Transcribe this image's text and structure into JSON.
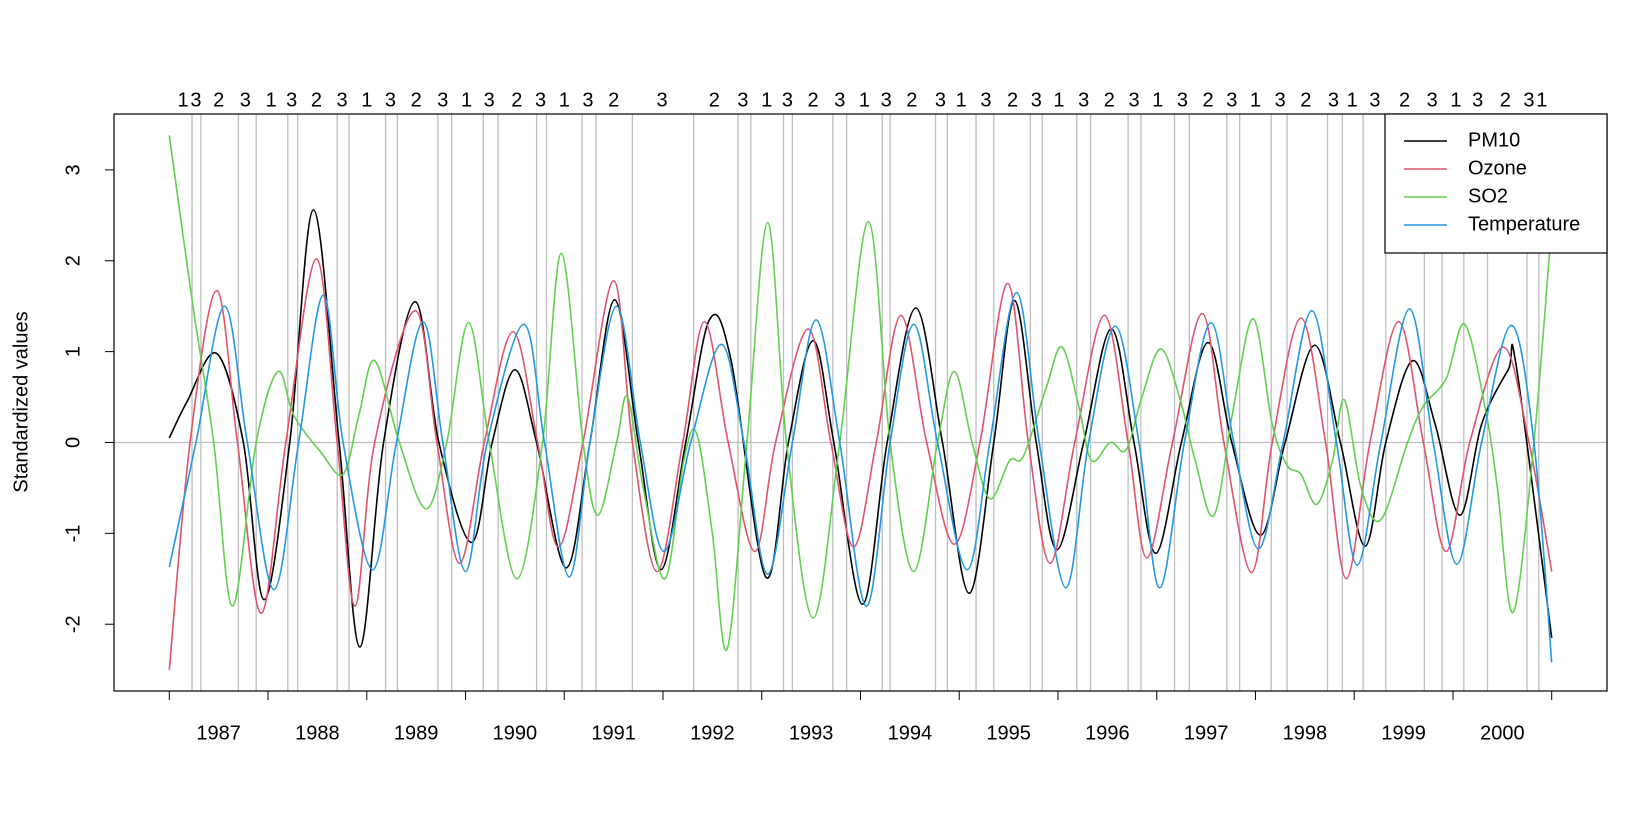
{
  "chart_data": {
    "type": "line",
    "y_label": "Standardized values",
    "xlim": [
      1986.44,
      2001.56
    ],
    "ylim": [
      -2.735,
      3.615
    ],
    "xticks": [
      1987,
      1988,
      1989,
      1990,
      1991,
      1992,
      1993,
      1994,
      1995,
      1996,
      1997,
      1998,
      1999,
      2000,
      2001
    ],
    "year_labels": [
      "1987",
      "1988",
      "1989",
      "1990",
      "1991",
      "1992",
      "1993",
      "1994",
      "1995",
      "1996",
      "1997",
      "1998",
      "1999",
      "2000"
    ],
    "yticks": [
      -2,
      -1,
      0,
      1,
      2,
      3
    ],
    "hline": 0,
    "vlines": [
      1987.23,
      1987.32,
      1987.7,
      1987.88,
      1988.2,
      1988.3,
      1988.7,
      1988.82,
      1989.19,
      1989.31,
      1989.72,
      1989.86,
      1990.18,
      1990.33,
      1990.72,
      1990.82,
      1991.18,
      1991.32,
      1991.69,
      1992.31,
      1992.76,
      1992.89,
      1993.22,
      1993.31,
      1993.72,
      1993.86,
      1994.22,
      1994.3,
      1994.76,
      1994.88,
      1995.17,
      1995.35,
      1995.72,
      1995.84,
      1996.19,
      1996.33,
      1996.71,
      1996.84,
      1997.18,
      1997.33,
      1997.71,
      1997.84,
      1998.16,
      1998.32,
      1998.73,
      1998.88,
      1999.09,
      1999.32,
      1999.71,
      1999.89,
      2000.11,
      2000.35,
      2000.75,
      2000.87
    ],
    "top_labels": [
      {
        "value": 1987.14,
        "label": "1"
      },
      {
        "value": 1987.27,
        "label": "3"
      },
      {
        "value": 1987.5,
        "label": "2"
      },
      {
        "value": 1987.77,
        "label": "3"
      },
      {
        "value": 1988.03,
        "label": "1"
      },
      {
        "value": 1988.24,
        "label": "3"
      },
      {
        "value": 1988.49,
        "label": "2"
      },
      {
        "value": 1988.75,
        "label": "3"
      },
      {
        "value": 1989.0,
        "label": "1"
      },
      {
        "value": 1989.24,
        "label": "3"
      },
      {
        "value": 1989.5,
        "label": "2"
      },
      {
        "value": 1989.77,
        "label": "3"
      },
      {
        "value": 1990.01,
        "label": "1"
      },
      {
        "value": 1990.24,
        "label": "3"
      },
      {
        "value": 1990.52,
        "label": "2"
      },
      {
        "value": 1990.76,
        "label": "3"
      },
      {
        "value": 1991.0,
        "label": "1"
      },
      {
        "value": 1991.24,
        "label": "3"
      },
      {
        "value": 1991.5,
        "label": "2"
      },
      {
        "value": 1991.99,
        "label": "3"
      },
      {
        "value": 1992.52,
        "label": "2"
      },
      {
        "value": 1992.81,
        "label": "3"
      },
      {
        "value": 1993.05,
        "label": "1"
      },
      {
        "value": 1993.26,
        "label": "3"
      },
      {
        "value": 1993.52,
        "label": "2"
      },
      {
        "value": 1993.79,
        "label": "3"
      },
      {
        "value": 1994.04,
        "label": "1"
      },
      {
        "value": 1994.26,
        "label": "3"
      },
      {
        "value": 1994.52,
        "label": "2"
      },
      {
        "value": 1994.81,
        "label": "3"
      },
      {
        "value": 1995.02,
        "label": "1"
      },
      {
        "value": 1995.27,
        "label": "3"
      },
      {
        "value": 1995.54,
        "label": "2"
      },
      {
        "value": 1995.78,
        "label": "3"
      },
      {
        "value": 1996.01,
        "label": "1"
      },
      {
        "value": 1996.26,
        "label": "3"
      },
      {
        "value": 1996.52,
        "label": "2"
      },
      {
        "value": 1996.77,
        "label": "3"
      },
      {
        "value": 1997.01,
        "label": "1"
      },
      {
        "value": 1997.26,
        "label": "3"
      },
      {
        "value": 1997.52,
        "label": "2"
      },
      {
        "value": 1997.76,
        "label": "3"
      },
      {
        "value": 1998.0,
        "label": "1"
      },
      {
        "value": 1998.25,
        "label": "3"
      },
      {
        "value": 1998.51,
        "label": "2"
      },
      {
        "value": 1998.79,
        "label": "3"
      },
      {
        "value": 1998.98,
        "label": "1"
      },
      {
        "value": 1999.21,
        "label": "3"
      },
      {
        "value": 1999.51,
        "label": "2"
      },
      {
        "value": 1999.79,
        "label": "3"
      },
      {
        "value": 2000.03,
        "label": "1"
      },
      {
        "value": 2000.25,
        "label": "3"
      },
      {
        "value": 2000.53,
        "label": "2"
      },
      {
        "value": 2000.77,
        "label": "3"
      },
      {
        "value": 2000.9,
        "label": "1"
      }
    ],
    "legend": "topright",
    "series": [
      {
        "name": "PM10",
        "color": "#000000",
        "x": [
          1987.0,
          1987.18,
          1987.48,
          1987.75,
          1987.96,
          1988.22,
          1988.46,
          1988.72,
          1988.93,
          1989.17,
          1989.49,
          1989.73,
          1990.06,
          1990.27,
          1990.5,
          1990.72,
          1991.02,
          1991.26,
          1991.51,
          1991.75,
          1991.98,
          1992.23,
          1992.47,
          1992.69,
          1993.04,
          1993.27,
          1993.52,
          1993.73,
          1994.02,
          1994.27,
          1994.56,
          1994.83,
          1995.1,
          1995.35,
          1995.56,
          1995.78,
          1995.99,
          1996.26,
          1996.54,
          1996.77,
          1996.99,
          1997.25,
          1997.52,
          1997.76,
          1998.05,
          1998.3,
          1998.6,
          1998.86,
          1999.11,
          1999.32,
          1999.59,
          1999.82,
          2000.07,
          2000.29,
          2000.56,
          2000.64,
          2001.0
        ],
        "values": [
          0.05,
          0.45,
          0.98,
          0,
          -1.73,
          0,
          2.56,
          0,
          -2.25,
          0,
          1.55,
          0,
          -1.1,
          0,
          0.8,
          0,
          -1.38,
          0,
          1.57,
          0,
          -1.4,
          0,
          1.35,
          0.9,
          -1.48,
          0,
          1.12,
          0,
          -1.78,
          0,
          1.48,
          0,
          -1.66,
          0,
          1.56,
          0,
          -1.18,
          0,
          1.25,
          0,
          -1.22,
          0,
          1.1,
          0,
          -1.02,
          0,
          1.07,
          0,
          -1.14,
          0,
          0.9,
          0.2,
          -0.8,
          0.2,
          0.8,
          0.85,
          -2.15
        ]
      },
      {
        "name": "Ozone",
        "color": "#DF536B",
        "x": [
          1987.0,
          1987.21,
          1987.48,
          1987.69,
          1987.93,
          1988.18,
          1988.49,
          1988.7,
          1988.88,
          1989.08,
          1989.49,
          1989.71,
          1989.94,
          1990.19,
          1990.48,
          1990.73,
          1990.94,
          1991.19,
          1991.5,
          1991.69,
          1991.94,
          1992.2,
          1992.42,
          1992.66,
          1992.93,
          1993.14,
          1993.47,
          1993.7,
          1993.93,
          1994.16,
          1994.41,
          1994.67,
          1994.95,
          1995.21,
          1995.49,
          1995.7,
          1995.92,
          1996.17,
          1996.47,
          1996.71,
          1996.9,
          1997.16,
          1997.46,
          1997.68,
          1997.96,
          1998.17,
          1998.46,
          1998.71,
          1998.92,
          1999.16,
          1999.45,
          1999.7,
          1999.93,
          2000.17,
          2000.51,
          2000.77,
          2001.0
        ],
        "values": [
          -2.5,
          0,
          1.67,
          0,
          -1.88,
          0,
          2.02,
          0,
          -1.8,
          0,
          1.45,
          0,
          -1.33,
          0,
          1.22,
          0,
          -1.15,
          0,
          1.78,
          0,
          -1.42,
          0,
          1.33,
          0,
          -1.2,
          0,
          1.25,
          0,
          -1.15,
          0,
          1.4,
          0,
          -1.12,
          0,
          1.75,
          0,
          -1.33,
          0,
          1.4,
          0,
          -1.27,
          0,
          1.42,
          0,
          -1.43,
          0,
          1.37,
          0,
          -1.5,
          0,
          1.33,
          0,
          -1.2,
          0,
          1.05,
          0,
          -1.42
        ]
      },
      {
        "name": "SO2",
        "color": "#61D04F",
        "x": [
          1987.0,
          1987.24,
          1987.45,
          1987.64,
          1987.88,
          1988.1,
          1988.26,
          1988.53,
          1988.76,
          1988.92,
          1989.08,
          1989.33,
          1989.6,
          1989.81,
          1990.03,
          1990.24,
          1990.52,
          1990.78,
          1990.97,
          1991.19,
          1991.34,
          1991.53,
          1991.64,
          1991.8,
          1992.02,
          1992.21,
          1992.34,
          1992.5,
          1992.65,
          1992.85,
          1993.06,
          1993.25,
          1993.52,
          1993.79,
          1994.08,
          1994.3,
          1994.54,
          1994.78,
          1994.95,
          1995.13,
          1995.31,
          1995.51,
          1995.65,
          1995.88,
          1996.04,
          1996.21,
          1996.34,
          1996.53,
          1996.69,
          1996.85,
          1997.04,
          1997.23,
          1997.39,
          1997.58,
          1997.78,
          1997.98,
          1998.17,
          1998.32,
          1998.46,
          1998.62,
          1998.78,
          1998.9,
          1999.07,
          1999.27,
          1999.54,
          1999.7,
          1999.93,
          2000.12,
          2000.34,
          2000.45,
          2000.61,
          2000.82,
          2001.0
        ],
        "values": [
          3.38,
          1.5,
          0,
          -1.8,
          0,
          0.78,
          0.3,
          -0.1,
          -0.35,
          0.3,
          0.9,
          0,
          -0.73,
          0,
          1.32,
          0,
          -1.5,
          0,
          2.08,
          0,
          -0.8,
          0,
          0.5,
          -0.5,
          -1.5,
          -0.2,
          0.1,
          -1,
          -2.27,
          0,
          2.42,
          0,
          -1.93,
          0,
          2.43,
          0,
          -1.42,
          0,
          0.78,
          0,
          -0.62,
          -0.2,
          -0.15,
          0.6,
          1.05,
          0.4,
          -0.2,
          0,
          -0.08,
          0.5,
          1.03,
          0.5,
          -0.2,
          -0.8,
          0.4,
          1.36,
          0.2,
          -0.25,
          -0.35,
          -0.68,
          -0.2,
          0.47,
          -0.5,
          -0.85,
          0,
          0.4,
          0.7,
          1.3,
          0.3,
          -0.5,
          -1.87,
          0,
          2.4
        ]
      },
      {
        "name": "Temperature",
        "color": "#2297E6",
        "x": [
          1987.0,
          1987.27,
          1987.56,
          1987.79,
          1988.06,
          1988.31,
          1988.56,
          1988.76,
          1989.06,
          1989.3,
          1989.57,
          1989.77,
          1990.0,
          1990.22,
          1990.59,
          1990.8,
          1991.05,
          1991.26,
          1991.53,
          1991.77,
          1992.01,
          1992.28,
          1992.59,
          1992.82,
          1993.06,
          1993.31,
          1993.55,
          1993.79,
          1994.06,
          1994.3,
          1994.54,
          1994.78,
          1995.08,
          1995.31,
          1995.58,
          1995.81,
          1996.08,
          1996.31,
          1996.58,
          1996.82,
          1997.03,
          1997.28,
          1997.55,
          1997.78,
          1998.03,
          1998.28,
          1998.57,
          1998.82,
          1999.03,
          1999.27,
          1999.56,
          1999.8,
          2000.04,
          2000.29,
          2000.59,
          2000.82,
          2001.0
        ],
        "values": [
          -1.37,
          0,
          1.5,
          0,
          -1.62,
          0,
          1.62,
          0,
          -1.4,
          0,
          1.33,
          0,
          -1.42,
          0,
          1.3,
          0,
          -1.48,
          0,
          1.5,
          0,
          -1.2,
          0,
          1.08,
          0,
          -1.45,
          0,
          1.35,
          0,
          -1.8,
          0,
          1.3,
          0,
          -1.4,
          0,
          1.65,
          0,
          -1.6,
          0,
          1.28,
          0,
          -1.6,
          0,
          1.32,
          0,
          -1.17,
          0,
          1.45,
          0,
          -1.35,
          0,
          1.47,
          0,
          -1.34,
          0,
          1.29,
          0,
          -2.42
        ]
      }
    ]
  }
}
